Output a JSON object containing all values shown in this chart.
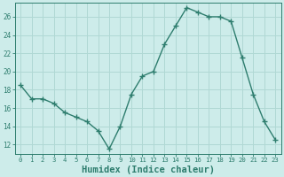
{
  "x": [
    0,
    1,
    2,
    3,
    4,
    5,
    6,
    7,
    8,
    9,
    10,
    11,
    12,
    13,
    14,
    15,
    16,
    17,
    18,
    19,
    20,
    21,
    22,
    23
  ],
  "y": [
    18.5,
    17,
    17,
    16.5,
    15.5,
    15,
    14.5,
    13.5,
    11.5,
    14,
    17.5,
    19.5,
    20,
    23,
    25,
    27,
    26.5,
    26,
    26,
    25.5,
    21.5,
    17.5,
    14.5,
    12.5
  ],
  "line_color": "#2e7d6e",
  "marker": "+",
  "marker_color": "#2e7d6e",
  "bg_color": "#cdecea",
  "grid_color": "#b0d8d4",
  "tick_color": "#2e7d6e",
  "xlabel": "Humidex (Indice chaleur)",
  "xlabel_fontsize": 7.5,
  "ylim": [
    11.0,
    27.5
  ],
  "yticks": [
    12,
    14,
    16,
    18,
    20,
    22,
    24,
    26
  ],
  "xlim": [
    -0.5,
    23.5
  ],
  "xticks": [
    0,
    1,
    2,
    3,
    4,
    5,
    6,
    7,
    8,
    9,
    10,
    11,
    12,
    13,
    14,
    15,
    16,
    17,
    18,
    19,
    20,
    21,
    22,
    23
  ],
  "linewidth": 1.0,
  "markersize": 4.0
}
